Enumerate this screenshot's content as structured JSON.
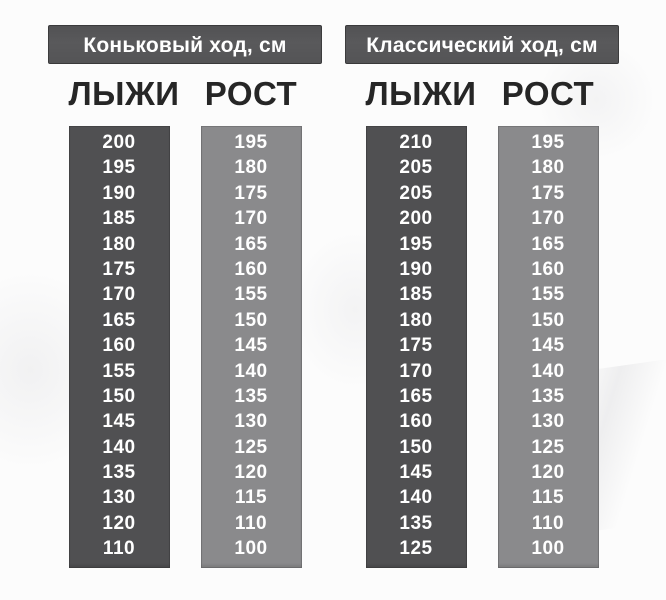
{
  "chart_data": [
    {
      "type": "table",
      "title": "Коньковый ход, см",
      "columns": [
        "ЛЫЖИ",
        "РОСТ"
      ],
      "rows": [
        [
          200,
          195
        ],
        [
          195,
          180
        ],
        [
          190,
          175
        ],
        [
          185,
          170
        ],
        [
          180,
          165
        ],
        [
          175,
          160
        ],
        [
          170,
          155
        ],
        [
          165,
          150
        ],
        [
          160,
          145
        ],
        [
          155,
          140
        ],
        [
          150,
          135
        ],
        [
          145,
          130
        ],
        [
          140,
          125
        ],
        [
          135,
          120
        ],
        [
          130,
          115
        ],
        [
          120,
          110
        ],
        [
          110,
          100
        ]
      ]
    },
    {
      "type": "table",
      "title": "Классический ход, см",
      "columns": [
        "ЛЫЖИ",
        "РОСТ"
      ],
      "rows": [
        [
          210,
          195
        ],
        [
          205,
          180
        ],
        [
          205,
          175
        ],
        [
          200,
          170
        ],
        [
          195,
          165
        ],
        [
          190,
          160
        ],
        [
          185,
          155
        ],
        [
          180,
          150
        ],
        [
          175,
          145
        ],
        [
          170,
          140
        ],
        [
          165,
          135
        ],
        [
          160,
          130
        ],
        [
          150,
          125
        ],
        [
          145,
          120
        ],
        [
          140,
          115
        ],
        [
          135,
          110
        ],
        [
          125,
          100
        ]
      ]
    }
  ],
  "colors": {
    "header_bar": "#59595b",
    "skis_column": "#505052",
    "height_column": "#8a8a8c",
    "label_text": "#262626",
    "value_text": "#ffffff",
    "background": "#fcfcfc"
  }
}
